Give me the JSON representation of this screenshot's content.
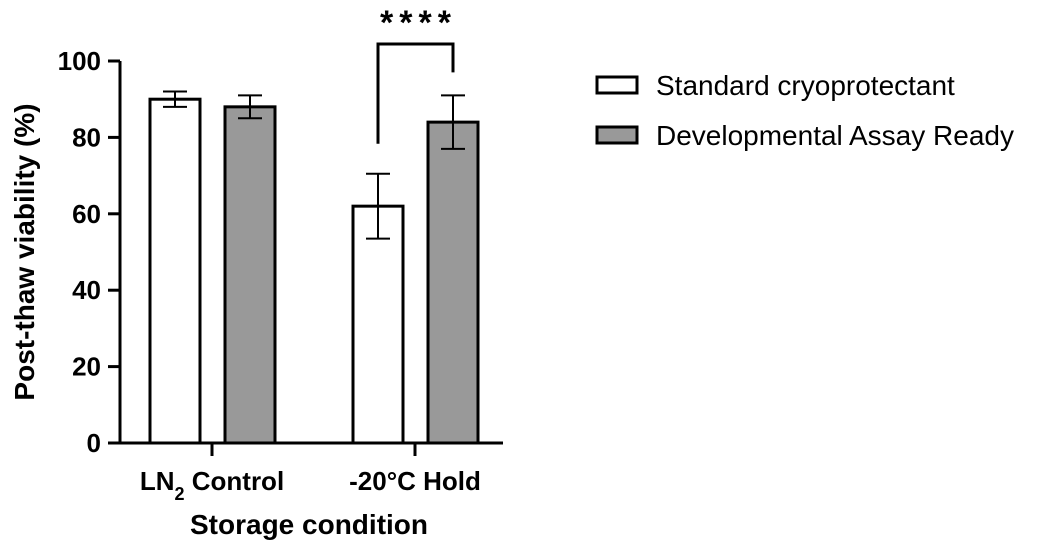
{
  "chart_data": {
    "type": "bar",
    "categories": [
      "LN2 Control",
      "-20°C Hold"
    ],
    "category_labels": [
      {
        "main": "LN",
        "sub": "2",
        "rest": " Control"
      },
      {
        "main": "-20°C Hold",
        "sub": "",
        "rest": ""
      }
    ],
    "series": [
      {
        "name": "Standard cryoprotectant",
        "values": [
          90,
          62
        ],
        "errors": [
          2,
          8.5
        ],
        "color": "#ffffff"
      },
      {
        "name": "Developmental Assay Ready",
        "values": [
          88,
          84
        ],
        "errors": [
          3,
          7
        ],
        "color": "#999999"
      }
    ],
    "xlabel": "Storage condition",
    "ylabel": "Post-thaw viability (%)",
    "ylim": [
      0,
      100
    ],
    "yticks": [
      0,
      20,
      40,
      60,
      80,
      100
    ],
    "grid": false,
    "legend_position": "right",
    "significance": {
      "category": "-20°C Hold",
      "label": "****"
    }
  }
}
